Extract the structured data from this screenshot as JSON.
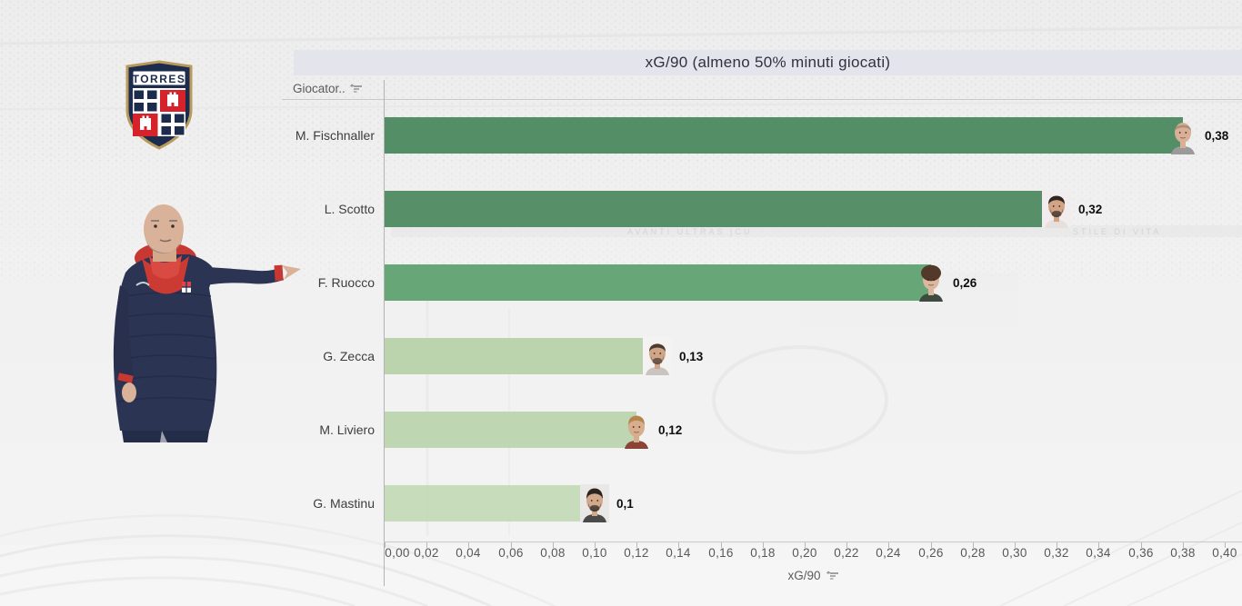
{
  "header": {
    "title": "xG/90 (almeno 50% minuti giocati)",
    "band_color": "#e4e4ed",
    "title_color": "#31313f"
  },
  "columns": {
    "player_header": "Giocator..",
    "axis_label": "xG/90"
  },
  "chart_data": {
    "type": "bar",
    "orientation": "horizontal",
    "title": "xG/90 (almeno 50% minuti giocati)",
    "xlabel": "xG/90",
    "ylabel": "Giocator..",
    "xlim": [
      0.0,
      0.4
    ],
    "tick_step": 0.02,
    "grid": false,
    "categories": [
      "M. Fischnaller",
      "L. Scotto",
      "F. Ruocco",
      "G. Zecca",
      "M. Liviero",
      "G. Mastinu"
    ],
    "values": [
      0.38,
      0.32,
      0.26,
      0.13,
      0.12,
      0.1
    ],
    "value_labels": [
      "0,38",
      "0,32",
      "0,26",
      "0,13",
      "0,12",
      "0,1"
    ],
    "bar_colors": [
      "#47875b",
      "#4b895e",
      "#5ca06d",
      "#b7d2a9",
      "#bad4ac",
      "#c3d9b6"
    ]
  },
  "x_ticks": [
    "0,00",
    "0,02",
    "0,04",
    "0,06",
    "0,08",
    "0,10",
    "0,12",
    "0,14",
    "0,16",
    "0,18",
    "0,20",
    "0,22",
    "0,24",
    "0,26",
    "0,28",
    "0,30",
    "0,32",
    "0,34",
    "0,36",
    "0,38",
    "0,40"
  ],
  "players": [
    {
      "name": "M. Fischnaller",
      "value": 0.38,
      "label": "0,38",
      "bar_color": "#47875b",
      "photo": {
        "bg": null,
        "skin": "#d9b096",
        "hair": "#a8907a",
        "hairH": 3,
        "beard": null,
        "shirt": "#9a9a9a"
      }
    },
    {
      "name": "L. Scotto",
      "value": 0.32,
      "label": "0,32",
      "bar_color": "#4b895e",
      "photo": {
        "bg": "#f1edee",
        "skin": "#d2a384",
        "hair": "#2f2620",
        "hairH": 6,
        "beard": "#41332b",
        "shirt": "#e6e0dd"
      }
    },
    {
      "name": "F. Ruocco",
      "value": 0.26,
      "label": "0,26",
      "bar_color": "#5ca06d",
      "photo": {
        "bg": null,
        "skin": "#dab79e",
        "hair": "#53392a",
        "hairH": 11,
        "beard": null,
        "shirt": "#3f4a41"
      }
    },
    {
      "name": "G. Zecca",
      "value": 0.13,
      "label": "0,13",
      "bar_color": "#b7d2a9",
      "photo": {
        "bg": "#f5f3f1",
        "skin": "#d0a687",
        "hair": "#4a3c33",
        "hairH": 5,
        "beard": "#55463c",
        "shirt": "#c9c4bf"
      }
    },
    {
      "name": "M. Liviero",
      "value": 0.12,
      "label": "0,12",
      "bar_color": "#bad4ac",
      "photo": {
        "bg": null,
        "skin": "#d8ad8e",
        "hair": "#b5854e",
        "hairH": 7,
        "beard": null,
        "shirt": "#8a4334"
      }
    },
    {
      "name": "G. Mastinu",
      "value": 0.1,
      "label": "0,1",
      "bar_color": "#c3d9b6",
      "photo": {
        "bg": "#eae8e7",
        "skin": "#d3a98c",
        "hair": "#2c241e",
        "hairH": 8,
        "beard": "#362c25",
        "shirt": "#4a4a4a"
      }
    }
  ],
  "club": {
    "name": "TORRES",
    "navy": "#1d2b4d",
    "red": "#d6232b",
    "gold": "#b89a5e"
  },
  "background": {
    "banner_left": "AVANTI ULTRAS |CU",
    "banner_right": "STILE DI VITA"
  }
}
